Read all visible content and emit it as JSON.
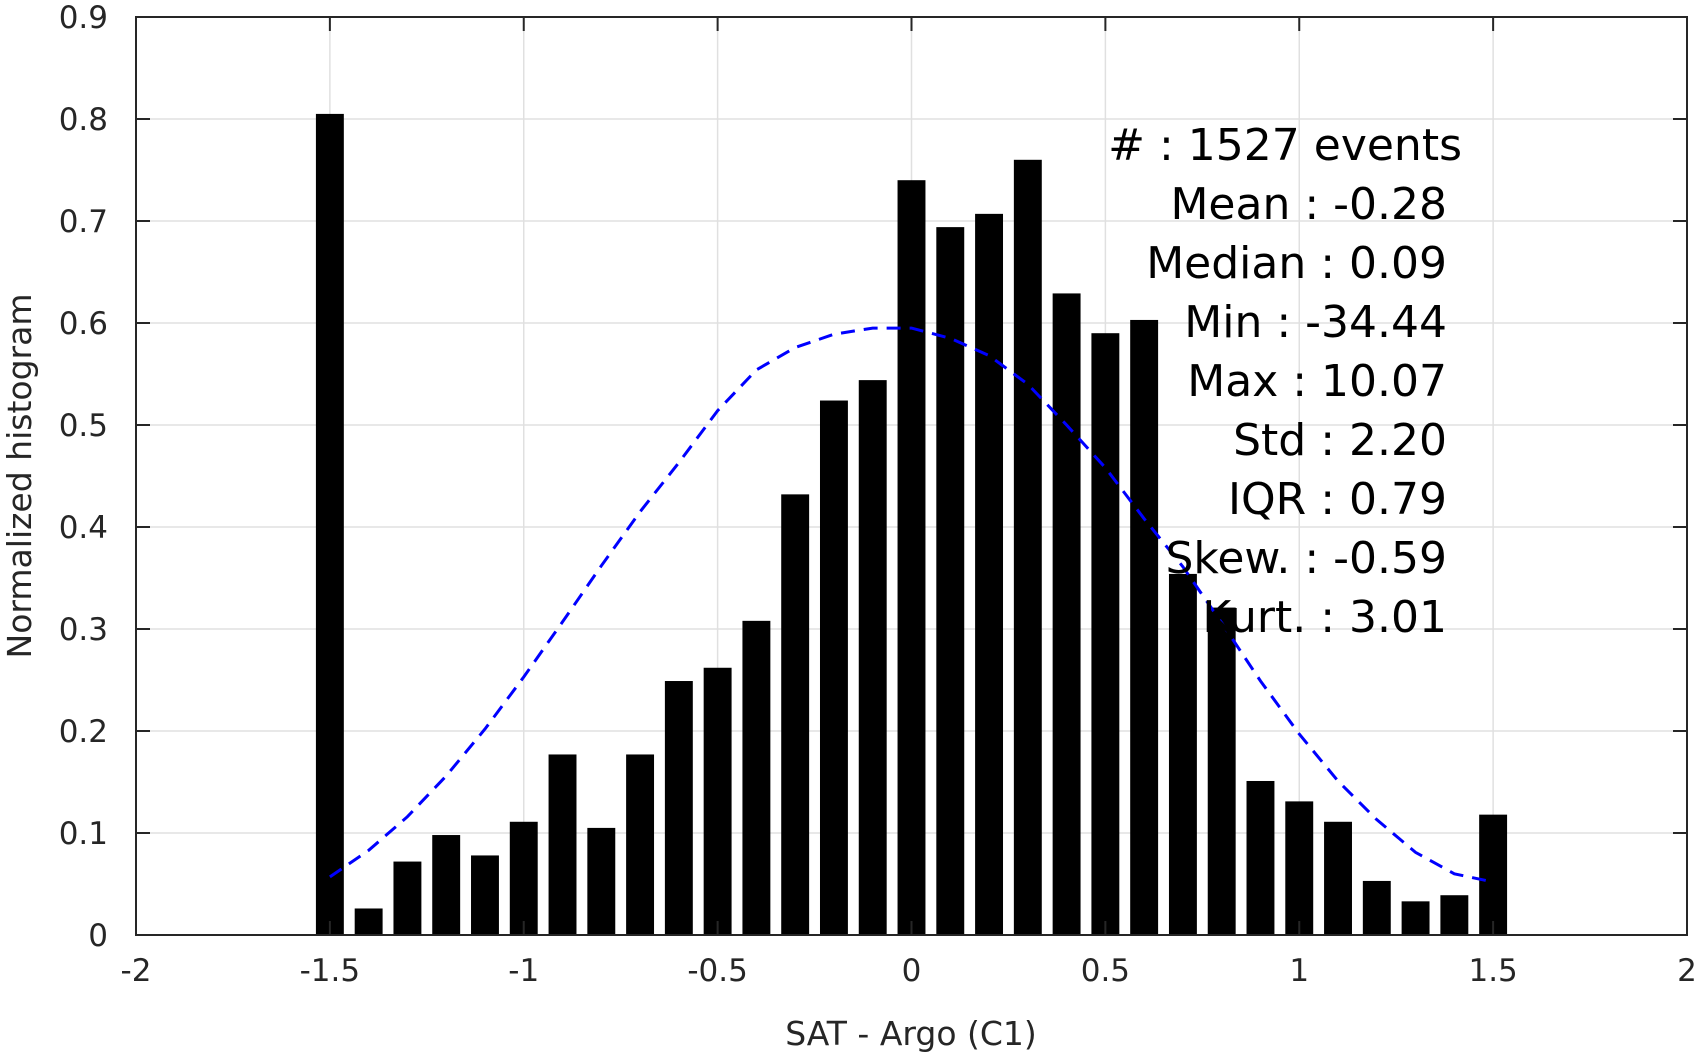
{
  "chart_data": {
    "type": "bar",
    "xlabel": "SAT - Argo (C1)",
    "ylabel": "Normalized histogram",
    "xlim": [
      -2,
      2
    ],
    "ylim": [
      0,
      0.9
    ],
    "xticks": [
      -2,
      -1.5,
      -1,
      -0.5,
      0,
      0.5,
      1,
      1.5,
      2
    ],
    "xtick_labels": [
      "-2",
      "-1.5",
      "-1",
      "-0.5",
      "0",
      "0.5",
      "1",
      "1.5",
      "2"
    ],
    "yticks": [
      0,
      0.1,
      0.2,
      0.3,
      0.4,
      0.5,
      0.6,
      0.7,
      0.8,
      0.9
    ],
    "ytick_labels": [
      "0",
      "0.1",
      "0.2",
      "0.3",
      "0.4",
      "0.5",
      "0.6",
      "0.7",
      "0.8",
      "0.9"
    ],
    "grid": true,
    "bar_color": "#000000",
    "bin_width": 0.1,
    "bin_centers": [
      -1.5,
      -1.4,
      -1.3,
      -1.2,
      -1.1,
      -1.0,
      -0.9,
      -0.8,
      -0.7,
      -0.6,
      -0.5,
      -0.4,
      -0.3,
      -0.2,
      -0.1,
      0.0,
      0.1,
      0.2,
      0.3,
      0.4,
      0.5,
      0.6,
      0.7,
      0.8,
      0.9,
      1.0,
      1.1,
      1.2,
      1.3,
      1.4,
      1.5
    ],
    "values": [
      0.805,
      0.026,
      0.072,
      0.098,
      0.078,
      0.111,
      0.177,
      0.105,
      0.177,
      0.249,
      0.262,
      0.308,
      0.432,
      0.524,
      0.544,
      0.74,
      0.694,
      0.707,
      0.76,
      0.629,
      0.59,
      0.603,
      0.354,
      0.321,
      0.151,
      0.131,
      0.111,
      0.053,
      0.033,
      0.039,
      0.118
    ],
    "fit_curve": {
      "style": "dashed",
      "color": "#0000ff",
      "x": [
        -1.5,
        -1.4,
        -1.3,
        -1.2,
        -1.1,
        -1.0,
        -0.9,
        -0.8,
        -0.7,
        -0.6,
        -0.5,
        -0.4,
        -0.3,
        -0.2,
        -0.1,
        0.0,
        0.1,
        0.2,
        0.3,
        0.4,
        0.5,
        0.6,
        0.7,
        0.8,
        0.9,
        1.0,
        1.1,
        1.2,
        1.3,
        1.4,
        1.5
      ],
      "y": [
        0.057,
        0.083,
        0.116,
        0.156,
        0.202,
        0.253,
        0.307,
        0.362,
        0.415,
        0.463,
        0.514,
        0.554,
        0.576,
        0.589,
        0.595,
        0.595,
        0.585,
        0.568,
        0.54,
        0.5,
        0.458,
        0.408,
        0.361,
        0.306,
        0.249,
        0.197,
        0.151,
        0.113,
        0.081,
        0.06,
        0.052
      ]
    },
    "annotation_lines": [
      "#  : 1527 events",
      "Mean : -0.28",
      "Median : 0.09",
      "Min : -34.44",
      "Max : 10.07",
      "Std : 2.20",
      "IQR : 0.79",
      "Skew. : -0.59",
      "Kurt. : 3.01"
    ]
  }
}
